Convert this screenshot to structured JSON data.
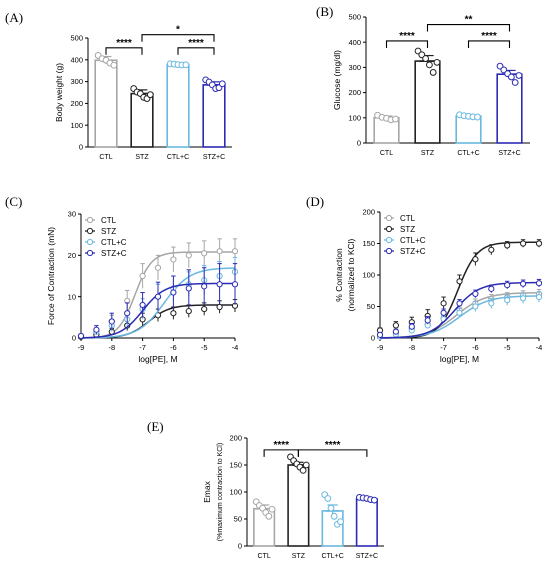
{
  "chart_data": [
    {
      "panel": "(A)",
      "type": "bar",
      "ylabel": "Body weight (g)",
      "ylim": [
        0,
        500
      ],
      "yticks": [
        0,
        100,
        200,
        300,
        400,
        500
      ],
      "categories": [
        "CTL",
        "STZ",
        "CTL+C",
        "STZ+C"
      ],
      "values": [
        398,
        245,
        378,
        285
      ],
      "errors": [
        17,
        17,
        4,
        14
      ],
      "colors": [
        "#a6a6a6",
        "#222222",
        "#6ab8e0",
        "#2b2bb5"
      ],
      "points": [
        [
          420,
          405,
          398,
          385,
          375
        ],
        [
          268,
          252,
          245,
          228,
          222,
          240
        ],
        [
          382,
          380,
          378,
          376,
          377
        ],
        [
          308,
          298,
          285,
          268,
          272,
          290
        ]
      ],
      "significance": [
        {
          "from": 0,
          "to": 1,
          "label": "****",
          "level": 455
        },
        {
          "from": 2,
          "to": 3,
          "label": "****",
          "level": 455
        },
        {
          "from": 1,
          "to": 3,
          "label": "*",
          "level": 515
        }
      ]
    },
    {
      "panel": "(B)",
      "type": "bar",
      "ylabel": "Glucose (mg/dl)",
      "ylim": [
        0,
        500
      ],
      "yticks": [
        0,
        100,
        200,
        300,
        400,
        500
      ],
      "categories": [
        "CTL",
        "STZ",
        "CTL+C",
        "STZ+C"
      ],
      "values": [
        100,
        325,
        107,
        273
      ],
      "errors": [
        7,
        22,
        4,
        15
      ],
      "colors": [
        "#a6a6a6",
        "#222222",
        "#6ab8e0",
        "#2b2bb5"
      ],
      "points": [
        [
          110,
          102,
          98,
          92,
          95
        ],
        [
          365,
          350,
          335,
          310,
          280,
          320
        ],
        [
          112,
          108,
          106,
          104,
          103
        ],
        [
          305,
          290,
          275,
          262,
          240,
          268
        ]
      ],
      "significance": [
        {
          "from": 0,
          "to": 1,
          "label": "****",
          "level": 405
        },
        {
          "from": 2,
          "to": 3,
          "label": "****",
          "level": 405
        },
        {
          "from": 1,
          "to": 3,
          "label": "**",
          "level": 470
        }
      ]
    },
    {
      "panel": "(C)",
      "type": "line",
      "ylabel": "Force of Contraction (mN)",
      "xlabel": "log[PE], M",
      "xlim": [
        -9,
        -4
      ],
      "xticks": [
        -9,
        -8,
        -7,
        -6,
        -5,
        -4
      ],
      "ylim": [
        0,
        30
      ],
      "yticks": [
        0,
        10,
        20,
        30
      ],
      "x": [
        -9,
        -8.5,
        -8,
        -7.5,
        -7,
        -6.5,
        -6,
        -5.5,
        -5,
        -4.5,
        -4
      ],
      "legend": "top-left",
      "series": [
        {
          "name": "CTL",
          "color": "#a6a6a6",
          "values": [
            0.5,
            1.5,
            4,
            9,
            15,
            17,
            19,
            20,
            20.5,
            21,
            21
          ],
          "errors": [
            0.3,
            0.8,
            1.5,
            2.5,
            3,
            3,
            3,
            3,
            3,
            3,
            3
          ],
          "curve": [
            20.8,
            -7.25,
            1
          ]
        },
        {
          "name": "STZ",
          "color": "#222222",
          "values": [
            0.3,
            0.8,
            1.5,
            3,
            4.5,
            5.5,
            6,
            6.5,
            7,
            7.5,
            7.8
          ],
          "errors": [
            0.2,
            0.4,
            0.8,
            1.2,
            1.5,
            1.5,
            1.5,
            1.5,
            1.5,
            1.5,
            1.5
          ],
          "curve": [
            8.0,
            -6.8,
            0.8
          ]
        },
        {
          "name": "CTL+C",
          "color": "#6ab8e0",
          "values": [
            0.5,
            1.5,
            3,
            4.5,
            7,
            10,
            12,
            13,
            14,
            15,
            16
          ],
          "errors": [
            0.3,
            0.8,
            1.5,
            2,
            2.5,
            3,
            3,
            3,
            3.5,
            3.5,
            3.5
          ],
          "curve": [
            17.0,
            -6.3,
            0.65
          ]
        },
        {
          "name": "STZ+C",
          "color": "#2b2bb5",
          "values": [
            0.5,
            2,
            4,
            6,
            8,
            10,
            11,
            12,
            12.5,
            13,
            13
          ],
          "errors": [
            0.3,
            1,
            2,
            2.5,
            3,
            3.5,
            4,
            4.5,
            4.5,
            5,
            5
          ],
          "curve": [
            13.2,
            -7.0,
            0.75
          ]
        }
      ]
    },
    {
      "panel": "(D)",
      "type": "line",
      "ylabel": "% Contraction",
      "ylabel2": "(normalized to KCl)",
      "xlabel": "log[PE], M",
      "xlim": [
        -9,
        -4
      ],
      "xticks": [
        -9,
        -8,
        -7,
        -6,
        -5,
        -4
      ],
      "ylim": [
        0,
        200
      ],
      "yticks": [
        0,
        50,
        100,
        150,
        200
      ],
      "x": [
        -9,
        -8.5,
        -8,
        -7.5,
        -7,
        -6.5,
        -6,
        -5.5,
        -5,
        -4.5,
        -4
      ],
      "legend": "top-left",
      "series": [
        {
          "name": "CTL",
          "color": "#a6a6a6",
          "values": [
            5,
            8,
            15,
            22,
            32,
            45,
            55,
            62,
            65,
            68,
            70
          ],
          "errors": [
            3,
            4,
            5,
            6,
            6,
            6,
            7,
            7,
            7,
            7,
            7
          ],
          "curve": [
            72,
            -6.6,
            0.6
          ]
        },
        {
          "name": "STZ",
          "color": "#222222",
          "values": [
            12,
            20,
            25,
            35,
            55,
            90,
            125,
            140,
            147,
            150,
            150
          ],
          "errors": [
            4,
            6,
            8,
            10,
            10,
            10,
            10,
            8,
            6,
            6,
            6
          ],
          "curve": [
            152,
            -6.55,
            0.9
          ]
        },
        {
          "name": "CTL+C",
          "color": "#6ab8e0",
          "values": [
            2,
            6,
            12,
            20,
            30,
            40,
            50,
            55,
            60,
            63,
            65
          ],
          "errors": [
            2,
            3,
            4,
            5,
            6,
            7,
            8,
            8,
            8,
            8,
            8
          ],
          "curve": [
            67,
            -6.5,
            0.6
          ]
        },
        {
          "name": "STZ+C",
          "color": "#2b2bb5",
          "values": [
            5,
            10,
            18,
            28,
            40,
            55,
            70,
            78,
            84,
            86,
            87
          ],
          "errors": [
            3,
            4,
            5,
            6,
            6,
            6,
            6,
            6,
            6,
            6,
            6
          ],
          "curve": [
            88,
            -6.65,
            0.7
          ]
        }
      ]
    },
    {
      "panel": "(E)",
      "type": "bar",
      "ylabel": "Emax",
      "ylabel2": "(%maximum contraction to KCl)",
      "ylim": [
        0,
        200
      ],
      "yticks": [
        0,
        50,
        100,
        150,
        200
      ],
      "categories": [
        "CTL",
        "STZ",
        "CTL+C",
        "STZ+C"
      ],
      "values": [
        69,
        150,
        65,
        87
      ],
      "errors": [
        7,
        5,
        11,
        2
      ],
      "colors": [
        "#a6a6a6",
        "#222222",
        "#6ab8e0",
        "#2b2bb5"
      ],
      "points": [
        [
          82,
          75,
          70,
          62,
          55,
          68
        ],
        [
          165,
          158,
          152,
          146,
          140,
          150
        ],
        [
          95,
          88,
          70,
          55,
          40,
          45
        ],
        [
          90,
          89,
          88,
          86,
          85
        ]
      ],
      "significance": [
        {
          "from": 0,
          "to": 1,
          "label": "****",
          "level": 178
        },
        {
          "from": 1,
          "to": 3,
          "label": "****",
          "level": 178
        }
      ]
    }
  ]
}
